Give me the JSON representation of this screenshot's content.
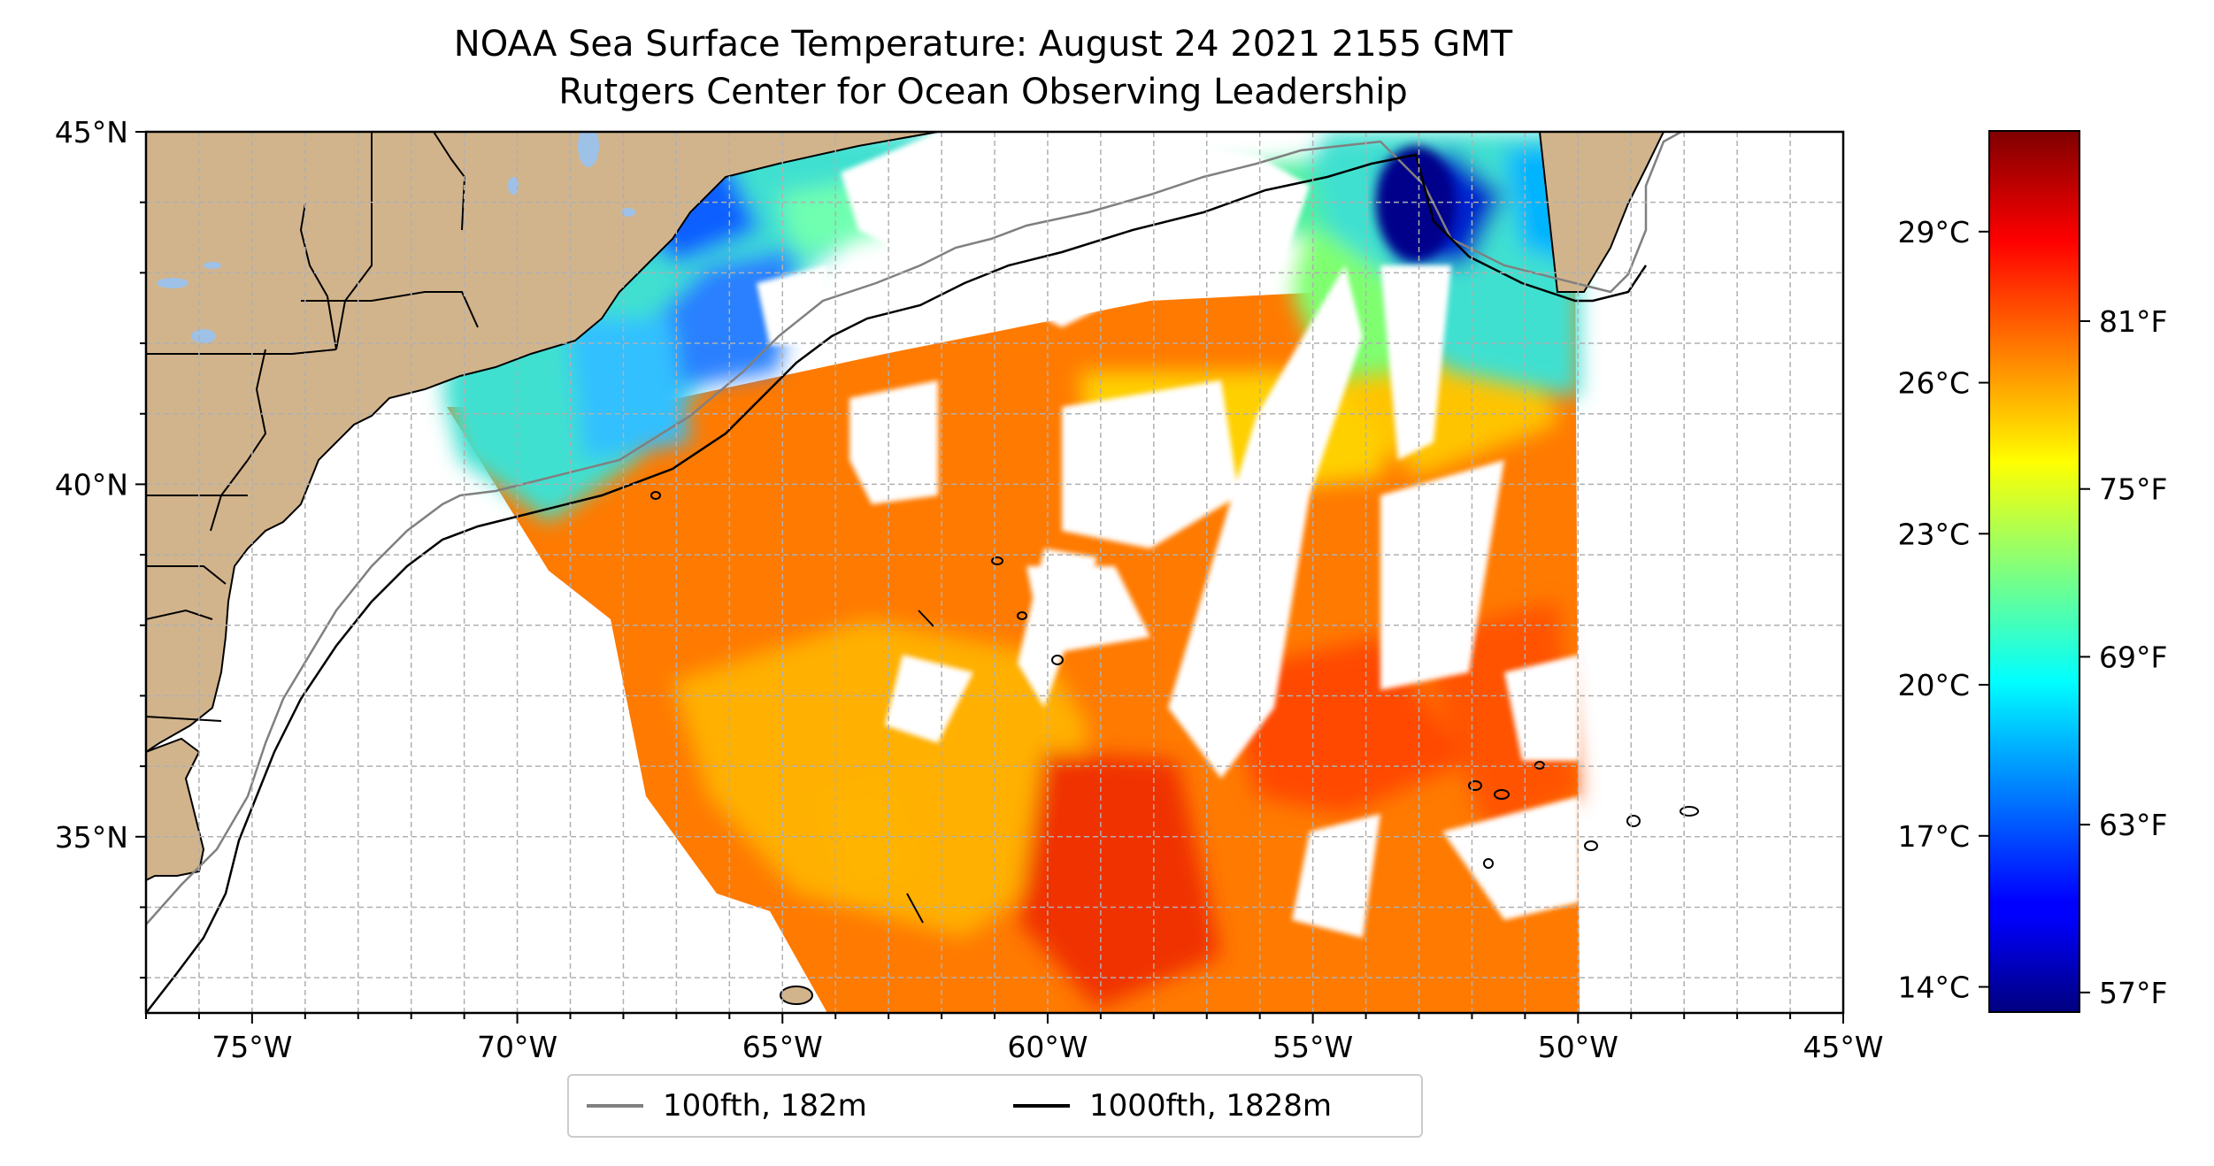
{
  "title": "NOAA Sea Surface Temperature: August 24 2021 2155 GMT",
  "subtitle": "Rutgers Center for Ocean Observing Leadership",
  "map": {
    "lon_range": [
      -77,
      -45
    ],
    "lat_range": [
      32.5,
      45
    ],
    "lon_ticks": [
      {
        "value": -75,
        "label": "75°W"
      },
      {
        "value": -70,
        "label": "70°W"
      },
      {
        "value": -65,
        "label": "65°W"
      },
      {
        "value": -60,
        "label": "60°W"
      },
      {
        "value": -55,
        "label": "55°W"
      },
      {
        "value": -50,
        "label": "50°W"
      },
      {
        "value": -45,
        "label": "45°W"
      }
    ],
    "lat_ticks": [
      {
        "value": 45,
        "label": "45°N"
      },
      {
        "value": 40,
        "label": "40°N"
      },
      {
        "value": 35,
        "label": "35°N"
      }
    ],
    "gridlines": true,
    "colors": {
      "land": "#d2b48c",
      "lakes": "#9ec1e8",
      "isobath_100fth": "#808080",
      "isobath_1000fth": "#000000",
      "grid": "#b0b0b0"
    }
  },
  "colorbar": {
    "colormap": "jet",
    "range_c": [
      13.5,
      31
    ],
    "celsius_ticks": [
      {
        "value": 14,
        "label": "14°C"
      },
      {
        "value": 17,
        "label": "17°C"
      },
      {
        "value": 20,
        "label": "20°C"
      },
      {
        "value": 23,
        "label": "23°C"
      },
      {
        "value": 26,
        "label": "26°C"
      },
      {
        "value": 29,
        "label": "29°C"
      }
    ],
    "fahrenheit_ticks": [
      {
        "value": 57,
        "label": "57°F"
      },
      {
        "value": 63,
        "label": "63°F"
      },
      {
        "value": 69,
        "label": "69°F"
      },
      {
        "value": 75,
        "label": "75°F"
      },
      {
        "value": 81,
        "label": "81°F"
      }
    ]
  },
  "legend": {
    "entries": [
      {
        "label": "100fth, 182m",
        "color": "#808080"
      },
      {
        "label": "1000fth, 1828m",
        "color": "#000000"
      }
    ]
  }
}
